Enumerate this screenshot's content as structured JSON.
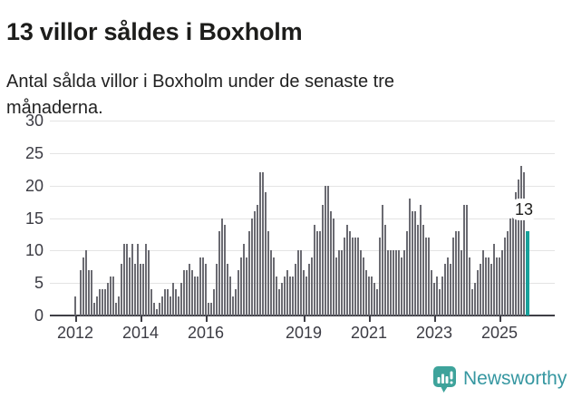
{
  "header": {
    "title": "13 villor såldes i Boxholm",
    "subtitle": "Antal sålda villor i Boxholm under de senaste tre månaderna."
  },
  "chart_data": {
    "type": "bar",
    "title": "13 villor såldes i Boxholm",
    "subtitle": "Antal sålda villor i Boxholm under de senaste tre månaderna.",
    "x_start": "2012-01",
    "frequency": "monthly",
    "values": [
      3,
      0,
      7,
      9,
      10,
      7,
      7,
      2,
      3,
      4,
      4,
      4,
      5,
      6,
      6,
      2,
      3,
      8,
      11,
      11,
      9,
      11,
      8,
      11,
      8,
      8,
      11,
      10,
      4,
      2,
      1,
      2,
      3,
      4,
      4,
      3,
      5,
      4,
      3,
      5,
      7,
      7,
      8,
      7,
      6,
      6,
      9,
      9,
      8,
      2,
      2,
      4,
      8,
      13,
      15,
      14,
      8,
      6,
      3,
      4,
      7,
      9,
      11,
      9,
      13,
      15,
      16,
      17,
      22,
      22,
      19,
      13,
      10,
      9,
      6,
      4,
      5,
      6,
      7,
      6,
      6,
      8,
      10,
      10,
      7,
      6,
      8,
      9,
      14,
      13,
      13,
      17,
      20,
      20,
      16,
      15,
      9,
      10,
      10,
      12,
      14,
      13,
      12,
      12,
      12,
      10,
      9,
      7,
      6,
      6,
      5,
      4,
      12,
      17,
      14,
      10,
      10,
      10,
      10,
      10,
      9,
      10,
      13,
      18,
      16,
      16,
      14,
      17,
      14,
      12,
      12,
      7,
      5,
      6,
      4,
      6,
      8,
      9,
      8,
      12,
      13,
      13,
      10,
      17,
      17,
      9,
      4,
      5,
      7,
      8,
      10,
      9,
      9,
      8,
      11,
      9,
      9,
      10,
      12,
      13,
      15,
      16,
      19,
      21,
      23,
      22,
      13
    ],
    "highlight": {
      "index": 166,
      "value": 13,
      "label": "13"
    },
    "y_ticks": [
      0,
      5,
      10,
      15,
      20,
      25,
      30
    ],
    "ylim": [
      0,
      30
    ],
    "x_ticks": [
      {
        "label": "2012",
        "month_index": 0
      },
      {
        "label": "2014",
        "month_index": 24
      },
      {
        "label": "2016",
        "month_index": 48
      },
      {
        "label": "2019",
        "month_index": 84
      },
      {
        "label": "2021",
        "month_index": 108
      },
      {
        "label": "2023",
        "month_index": 132
      },
      {
        "label": "2025",
        "month_index": 156
      }
    ],
    "grid": true,
    "legend": "none",
    "colors": {
      "bar": "#6b6b72",
      "highlight": "#18a19b",
      "gridline": "#e4e4e4",
      "axis": "#3f3f46",
      "tick_label": "#3c3c44"
    }
  },
  "annotation": {
    "label": "13"
  },
  "footer": {
    "brand": "Newsworthy",
    "brand_color": "#3697a1",
    "icon": "newsworthy-logo-icon",
    "icon_color": "#3ea39b"
  }
}
